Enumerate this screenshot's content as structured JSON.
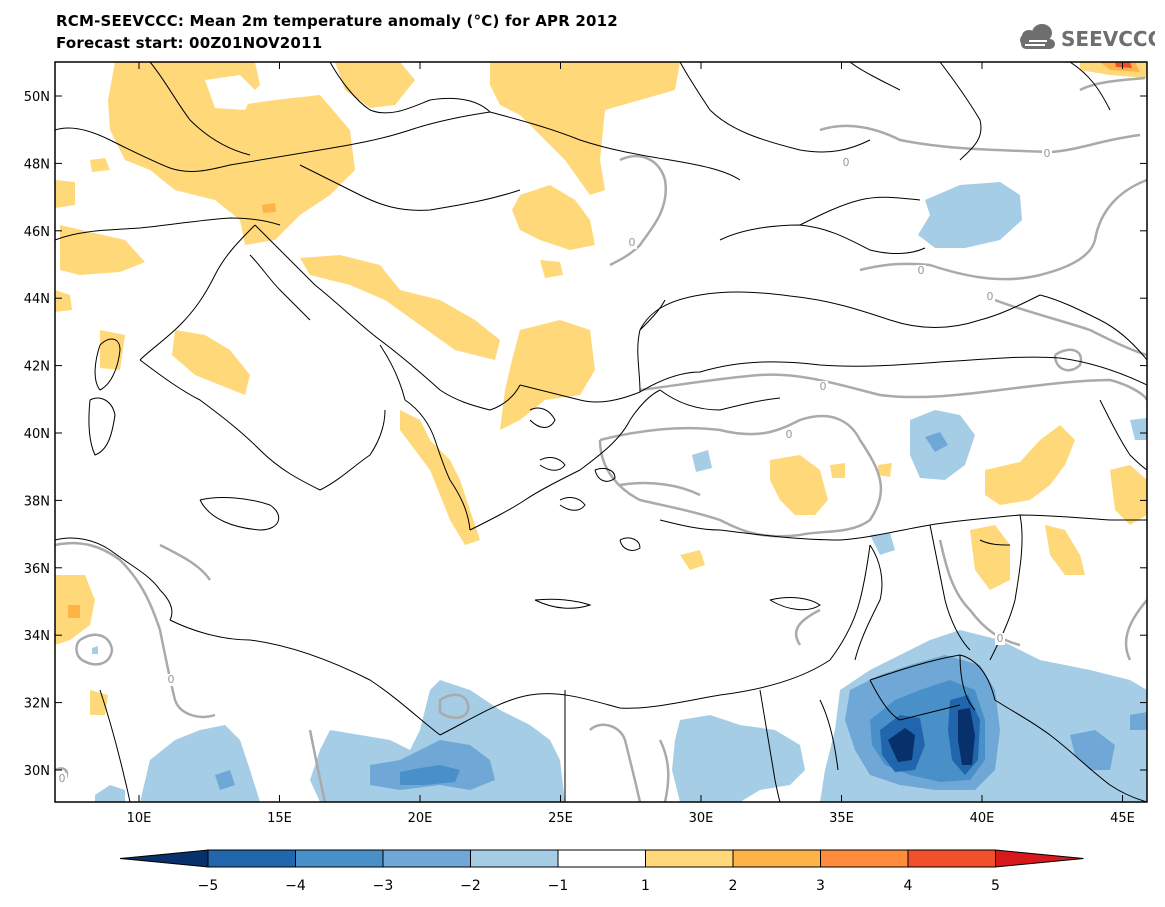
{
  "header": {
    "title": "RCM-SEEVCCC: Mean 2m temperature anomaly (°C) for APR 2012",
    "subtitle": "Forecast start: 00Z01NOV2011",
    "logo_text": "SEEVCCC"
  },
  "map": {
    "lat_labels": [
      "50N",
      "48N",
      "46N",
      "44N",
      "42N",
      "40N",
      "38N",
      "36N",
      "34N",
      "32N",
      "30N"
    ],
    "lon_labels": [
      "10E",
      "15E",
      "20E",
      "25E",
      "30E",
      "35E",
      "40E",
      "45E"
    ],
    "contour_label": "0"
  },
  "colorbar": {
    "labels": [
      "−5",
      "−4",
      "−3",
      "−2",
      "−1",
      "1",
      "2",
      "3",
      "4",
      "5"
    ],
    "colors": [
      "#08306b",
      "#2166ac",
      "#4a90c8",
      "#6fa8d6",
      "#a6cde6",
      "#ffffff",
      "#ffd87a",
      "#ffb347",
      "#ff8c3a",
      "#f0502a",
      "#d7191c"
    ]
  }
}
